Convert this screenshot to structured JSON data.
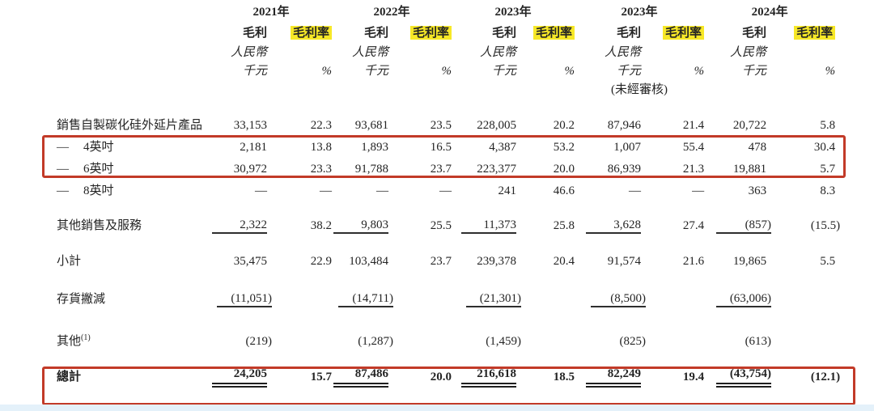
{
  "page": {
    "background": "#ffffff",
    "bottom_strip_color": "#e4f1fa"
  },
  "annotations": {
    "red_box_color": "#c23a28",
    "highlight_color": "#f7e827",
    "boxes": [
      "inch-rows",
      "total-row"
    ]
  },
  "table": {
    "header": {
      "groups": [
        {
          "year": "2021年",
          "gp": "毛利",
          "gm": "毛利率",
          "currency": "人民幣",
          "unit": "千元",
          "pct": "%",
          "note": ""
        },
        {
          "year": "2022年",
          "gp": "毛利",
          "gm": "毛利率",
          "currency": "人民幣",
          "unit": "千元",
          "pct": "%",
          "note": ""
        },
        {
          "year": "2023年",
          "gp": "毛利",
          "gm": "毛利率",
          "currency": "人民幣",
          "unit": "千元",
          "pct": "%",
          "note": ""
        },
        {
          "year": "2023年",
          "gp": "毛利",
          "gm": "毛利率",
          "currency": "人民幣",
          "unit": "千元",
          "pct": "%",
          "note": "(未經審核)"
        },
        {
          "year": "2024年",
          "gp": "毛利",
          "gm": "毛利率",
          "currency": "人民幣",
          "unit": "千元",
          "pct": "%",
          "note": ""
        }
      ]
    },
    "rows": [
      {
        "prefix": "",
        "label": "銷售自製碳化硅外延片產品",
        "sup": "",
        "style": "normal",
        "values": [
          "33,153",
          "22.3",
          "93,681",
          "23.5",
          "228,005",
          "20.2",
          "87,946",
          "21.4",
          "20,722",
          "5.8"
        ]
      },
      {
        "prefix": "—",
        "label": "4英吋",
        "sup": "",
        "style": "normal",
        "values": [
          "2,181",
          "13.8",
          "1,893",
          "16.5",
          "4,387",
          "53.2",
          "1,007",
          "55.4",
          "478",
          "30.4"
        ]
      },
      {
        "prefix": "—",
        "label": "6英吋",
        "sup": "",
        "style": "normal",
        "values": [
          "30,972",
          "23.3",
          "91,788",
          "23.7",
          "223,377",
          "20.0",
          "86,939",
          "21.3",
          "19,881",
          "5.7"
        ]
      },
      {
        "prefix": "—",
        "label": "8英吋",
        "sup": "",
        "style": "normal",
        "values": [
          "—",
          "—",
          "—",
          "—",
          "241",
          "46.6",
          "—",
          "—",
          "363",
          "8.3"
        ]
      },
      {
        "prefix": "",
        "label": "其他銷售及服務",
        "sup": "",
        "style": "rule",
        "values": [
          "2,322",
          "38.2",
          "9,803",
          "25.5",
          "11,373",
          "25.8",
          "3,628",
          "27.4",
          "(857)",
          "(15.5)"
        ]
      },
      {
        "prefix": "",
        "label": "小計",
        "sup": "",
        "style": "normal",
        "values": [
          "35,475",
          "22.9",
          "103,484",
          "23.7",
          "239,378",
          "20.4",
          "91,574",
          "21.6",
          "19,865",
          "5.5"
        ]
      },
      {
        "prefix": "",
        "label": "存貨撇減",
        "sup": "",
        "style": "rule",
        "values": [
          "(11,051)",
          "",
          "(14,711)",
          "",
          "(21,301)",
          "",
          "(8,500)",
          "",
          "(63,006)",
          ""
        ]
      },
      {
        "prefix": "",
        "label": "其他",
        "sup": "(1)",
        "style": "normal",
        "values": [
          "(219)",
          "",
          "(1,287)",
          "",
          "(1,459)",
          "",
          "(825)",
          "",
          "(613)",
          ""
        ]
      },
      {
        "prefix": "",
        "label": "總計",
        "sup": "",
        "style": "total",
        "values": [
          "24,205",
          "15.7",
          "87,486",
          "20.0",
          "216,618",
          "18.5",
          "82,249",
          "19.4",
          "(43,754)",
          "(12.1)"
        ]
      }
    ]
  }
}
